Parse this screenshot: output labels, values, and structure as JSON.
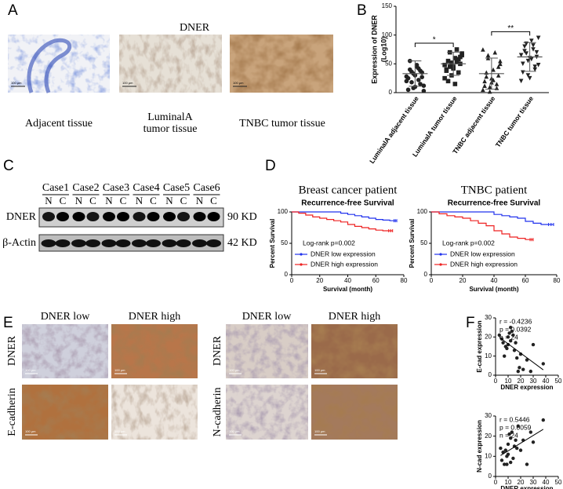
{
  "panel_labels": [
    "A",
    "B",
    "C",
    "D",
    "E",
    "F"
  ],
  "panel_a": {
    "title": "DNER",
    "captions": [
      "Adjacent tissue",
      [
        "LuminalA",
        "tumor tissue"
      ],
      "TNBC tumor tissue"
    ],
    "scale_bar": "100 μm"
  },
  "panel_c": {
    "cases": [
      "Case1",
      "Case2",
      "Case3",
      "Case4",
      "Case5",
      "Case6"
    ],
    "lanes": [
      "N",
      "C"
    ],
    "rows": [
      {
        "name": "DNER",
        "size": "90 KD"
      },
      {
        "name": "β-Actin",
        "size": "42 KD"
      }
    ]
  },
  "panel_e": {
    "columns": [
      "DNER low",
      "DNER high"
    ],
    "rows_left": [
      "DNER",
      "E-cadherin"
    ],
    "rows_right": [
      "DNER",
      "N-cadherin"
    ],
    "scale_bar": "100 μm"
  },
  "chart_data": [
    {
      "type": "dotplot",
      "y_label": [
        "Expression of DNER",
        "(Log10)"
      ],
      "categories": [
        "LuminalA adjacent tissue",
        "LuminalA tumor tissue",
        "TNBC adjacent tissue",
        "TNBC tumor tissue"
      ],
      "markers": [
        "circle",
        "square",
        "triangle",
        "triangle-down"
      ],
      "values": [
        [
          20,
          8,
          15,
          25,
          30,
          35,
          40,
          45,
          12,
          18,
          22,
          28,
          33,
          38,
          5,
          10,
          27,
          55,
          48,
          3,
          36,
          42
        ],
        [
          25,
          30,
          35,
          40,
          45,
          50,
          55,
          60,
          65,
          70,
          75,
          48,
          52,
          58,
          38,
          42,
          62,
          20,
          15,
          68,
          45,
          53
        ],
        [
          5,
          10,
          15,
          20,
          25,
          30,
          35,
          40,
          50,
          60,
          70,
          75,
          2,
          8,
          12,
          18,
          45,
          28,
          22,
          55,
          65
        ],
        [
          20,
          30,
          40,
          50,
          60,
          70,
          80,
          90,
          95,
          85,
          75,
          65,
          55,
          45,
          35,
          25,
          62,
          72,
          58,
          48,
          68,
          82
        ]
      ],
      "means": [
        33,
        50,
        33,
        62
      ],
      "errors": [
        22,
        20,
        27,
        25
      ],
      "annotations": [
        "*",
        "**"
      ],
      "ylim": [
        0,
        150
      ],
      "yticks": [
        0,
        50,
        100,
        150
      ],
      "color": "#222222"
    },
    {
      "type": "km",
      "title": "Breast cancer patient",
      "subtitle": "Recurrence-free Survival",
      "x_label": "Survival (month)",
      "y_label": "Percent Survival",
      "annotation": "Log-rank p=0.002",
      "xlim": [
        0,
        80
      ],
      "xticks": [
        0,
        20,
        40,
        60,
        80
      ],
      "ylim": [
        0,
        100
      ],
      "yticks": [
        0,
        50,
        100
      ],
      "legend": "lower-left",
      "series": [
        {
          "name": "DNER low expression",
          "color": "#2233ee",
          "x": [
            0,
            35,
            40,
            45,
            50,
            55,
            60,
            65,
            70,
            75
          ],
          "values": [
            100,
            98,
            96,
            94,
            92,
            90,
            88,
            87,
            86,
            86
          ]
        },
        {
          "name": "DNER high expression",
          "color": "#ee2222",
          "x": [
            0,
            5,
            10,
            15,
            20,
            25,
            30,
            35,
            40,
            45,
            50,
            55,
            60,
            65,
            72
          ],
          "values": [
            100,
            98,
            95,
            92,
            90,
            88,
            86,
            84,
            80,
            77,
            75,
            73,
            71,
            70,
            70
          ]
        }
      ]
    },
    {
      "type": "km",
      "title": "TNBC patient",
      "subtitle": "Recurrence-free Survival",
      "x_label": "Survival (month)",
      "y_label": "Percent Survival",
      "annotation": "Log-rank p=0.002",
      "xlim": [
        0,
        80
      ],
      "xticks": [
        0,
        20,
        40,
        60,
        80
      ],
      "ylim": [
        0,
        100
      ],
      "yticks": [
        0,
        50,
        100
      ],
      "legend": "lower-left",
      "series": [
        {
          "name": "DNER low expression",
          "color": "#2233ee",
          "x": [
            0,
            40,
            45,
            50,
            55,
            60,
            65,
            70,
            78
          ],
          "values": [
            100,
            96,
            94,
            92,
            90,
            85,
            82,
            80,
            80
          ]
        },
        {
          "name": "DNER high expression",
          "color": "#ee2222",
          "x": [
            0,
            5,
            10,
            15,
            20,
            25,
            30,
            35,
            40,
            45,
            50,
            55,
            60,
            65
          ],
          "values": [
            100,
            97,
            94,
            92,
            90,
            86,
            82,
            78,
            70,
            65,
            60,
            58,
            56,
            56
          ]
        }
      ]
    },
    {
      "type": "scatter",
      "stats": [
        "r = -0.4236",
        "p = 0.0392",
        "n = 24"
      ],
      "x_label": "DNER expression",
      "y_label": "E-cad expression",
      "xlim": [
        0,
        50
      ],
      "xticks": [
        0,
        10,
        20,
        30,
        40,
        50
      ],
      "ylim": [
        0,
        30
      ],
      "yticks": [
        0,
        10,
        20,
        30
      ],
      "color": "#222222",
      "x": [
        3,
        5,
        6,
        8,
        9,
        10,
        10,
        11,
        12,
        12,
        13,
        14,
        15,
        16,
        17,
        18,
        19,
        20,
        22,
        25,
        28,
        30,
        38,
        7
      ],
      "values": [
        21,
        19,
        17,
        15,
        14,
        20,
        16,
        22,
        25,
        18,
        23,
        21,
        13,
        17,
        9,
        2,
        4,
        11,
        3,
        8,
        2,
        16,
        6,
        10
      ]
    },
    {
      "type": "scatter",
      "stats": [
        "r = 0.5446",
        "p = 0.0059",
        "n = 24"
      ],
      "x_label": "DNER expression",
      "y_label": "N-cad expression",
      "xlim": [
        0,
        50
      ],
      "xticks": [
        0,
        10,
        20,
        30,
        40,
        50
      ],
      "ylim": [
        0,
        30
      ],
      "yticks": [
        0,
        10,
        20,
        30
      ],
      "color": "#222222",
      "x": [
        4,
        5,
        6,
        7,
        8,
        9,
        10,
        10,
        11,
        12,
        12,
        13,
        14,
        15,
        16,
        17,
        18,
        20,
        22,
        25,
        28,
        30,
        38,
        9
      ],
      "values": [
        14,
        8,
        12,
        6,
        13,
        10,
        11,
        16,
        21,
        19,
        7,
        22,
        9,
        15,
        18,
        14,
        25,
        13,
        18,
        6,
        22,
        17,
        28,
        6
      ]
    }
  ]
}
